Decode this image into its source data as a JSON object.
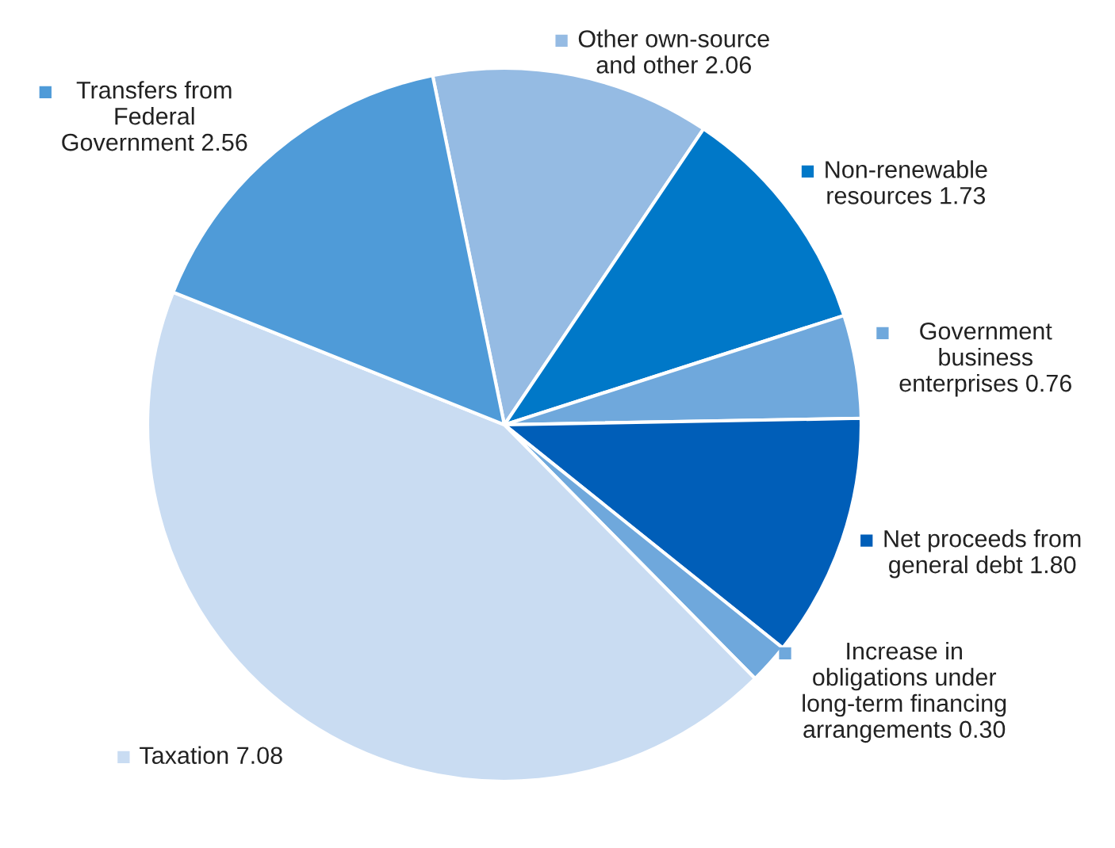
{
  "chart_data": {
    "type": "pie",
    "categories": [
      "Other own-source\nand other",
      "Non-renewable\nresources",
      "Government\nbusiness\nenterprises",
      "Net proceeds from\ngeneral debt",
      "Increase in\nobligations under\nlong-term financing\narrangements",
      "Taxation",
      "Transfers from\nFederal\nGovernment"
    ],
    "values": [
      2.06,
      1.73,
      0.76,
      1.8,
      0.3,
      7.08,
      2.56
    ],
    "value_labels": [
      "2.06",
      "1.73",
      "0.76",
      "1.80",
      "0.30",
      "7.08",
      "2.56"
    ],
    "legend": "right",
    "colors": [
      "#95bbe3",
      "#0078c8",
      "#6fa8dc",
      "#005eb8",
      "#6fa8dc",
      "#c9dcf2",
      "#4f9bd8"
    ]
  }
}
